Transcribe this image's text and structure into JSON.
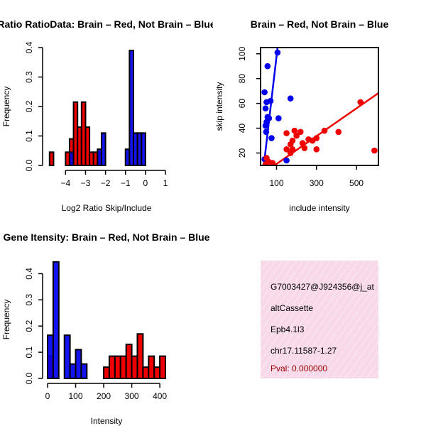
{
  "chart_data": [
    {
      "id": "ratio",
      "type": "bar",
      "title": "Ratio RatioData: Brain – Red, Not Brain – Blue",
      "xlabel": "Log2 Ratio Skip/Include",
      "ylabel": "Frequency",
      "xlim": [
        -4.9,
        1.0
      ],
      "ylim": [
        0,
        0.4
      ],
      "xticks": [
        -4,
        -3,
        -2,
        -1,
        0,
        1
      ],
      "yticks": [
        0.0,
        0.1,
        0.2,
        0.3,
        0.4
      ],
      "bin_width": 0.2,
      "series": [
        {
          "name": "Brain",
          "color": "#ee0000",
          "bins": [
            [
              -4.8,
              0.045
            ],
            [
              -4.0,
              0.045
            ],
            [
              -3.8,
              0.09
            ],
            [
              -3.6,
              0.215
            ],
            [
              -3.4,
              0.13
            ],
            [
              -3.2,
              0.215
            ],
            [
              -3.0,
              0.13
            ],
            [
              -2.8,
              0.045
            ],
            [
              -2.6,
              0.045
            ],
            [
              -2.4,
              0.045
            ]
          ]
        },
        {
          "name": "Not Brain",
          "color": "#0000ee",
          "bins": [
            [
              -3.8,
              0.045
            ],
            [
              -2.4,
              0.055
            ],
            [
              -2.2,
              0.11
            ],
            [
              -1.0,
              0.055
            ],
            [
              -0.8,
              0.39
            ],
            [
              -0.6,
              0.11
            ],
            [
              -0.4,
              0.11
            ],
            [
              -0.2,
              0.11
            ]
          ]
        }
      ]
    },
    {
      "id": "scatter",
      "type": "scatter",
      "title": "Brain – Red, Not Brain – Blue",
      "xlabel": "include intensity",
      "ylabel": "skip intensity",
      "xlim": [
        20,
        610
      ],
      "ylim": [
        10,
        105
      ],
      "xticks": [
        100,
        300,
        500
      ],
      "xtick_labels": [
        "100",
        "300",
        "500"
      ],
      "yticks": [
        20,
        40,
        60,
        80,
        100
      ],
      "series": [
        {
          "name": "Not Brain",
          "color": "#0000ee",
          "fit": {
            "intercept": -40,
            "slope": 1.38
          },
          "points": [
            [
              105,
              101
            ],
            [
              55,
              90
            ],
            [
              40,
              69
            ],
            [
              170,
              64
            ],
            [
              70,
              62
            ],
            [
              50,
              61
            ],
            [
              45,
              56
            ],
            [
              55,
              49
            ],
            [
              62,
              48
            ],
            [
              50,
              45
            ],
            [
              110,
              48
            ],
            [
              45,
              42
            ],
            [
              48,
              37
            ],
            [
              75,
              32
            ],
            [
              150,
              14
            ],
            [
              40,
              15
            ]
          ]
        },
        {
          "name": "Brain",
          "color": "#ee0000",
          "fit": {
            "intercept": 0,
            "slope": 0.112
          },
          "points": [
            [
              520,
              61
            ],
            [
              410,
              37
            ],
            [
              340,
              38
            ],
            [
              300,
              32
            ],
            [
              260,
              31
            ],
            [
              280,
              30
            ],
            [
              220,
              37
            ],
            [
              190,
              38
            ],
            [
              150,
              36
            ],
            [
              200,
              34
            ],
            [
              180,
              30
            ],
            [
              230,
              28
            ],
            [
              170,
              27
            ],
            [
              240,
              24
            ],
            [
              300,
              23
            ],
            [
              180,
              23
            ],
            [
              170,
              20
            ],
            [
              150,
              23
            ],
            [
              590,
              22
            ],
            [
              50,
              16
            ],
            [
              60,
              13
            ],
            [
              45,
              11
            ],
            [
              80,
              12
            ]
          ]
        }
      ]
    },
    {
      "id": "intensity",
      "type": "bar",
      "title": "Gene Itensity: Brain – Red, Not Brain – Blue",
      "xlabel": "Intensity",
      "ylabel": "Frequency",
      "xlim": [
        0,
        420
      ],
      "ylim": [
        0,
        0.45
      ],
      "xticks": [
        0,
        100,
        200,
        300,
        400
      ],
      "yticks": [
        0.0,
        0.1,
        0.2,
        0.3,
        0.4
      ],
      "bin_width": 20,
      "series": [
        {
          "name": "Brain",
          "color": "#ee0000",
          "bins": [
            [
              0,
              0.085
            ],
            [
              200,
              0.043
            ],
            [
              220,
              0.085
            ],
            [
              240,
              0.085
            ],
            [
              260,
              0.085
            ],
            [
              280,
              0.13
            ],
            [
              300,
              0.085
            ],
            [
              320,
              0.17
            ],
            [
              340,
              0.043
            ],
            [
              360,
              0.085
            ],
            [
              380,
              0.043
            ],
            [
              400,
              0.085
            ]
          ]
        },
        {
          "name": "Not Brain",
          "color": "#0000ee",
          "bins": [
            [
              0,
              0.165
            ],
            [
              20,
              0.445
            ],
            [
              40,
              0.0
            ],
            [
              60,
              0.165
            ],
            [
              80,
              0.055
            ],
            [
              100,
              0.11
            ],
            [
              120,
              0.055
            ]
          ]
        }
      ]
    }
  ],
  "info_panel": {
    "lines": [
      "G7003427@J924356@j_at",
      "altCassette",
      "Epb4.1l3",
      "chr17.11587-1.27"
    ],
    "pval": "Pval: 0.000000",
    "pval_color": "#990000",
    "bg_color": "#f7d9ea"
  }
}
